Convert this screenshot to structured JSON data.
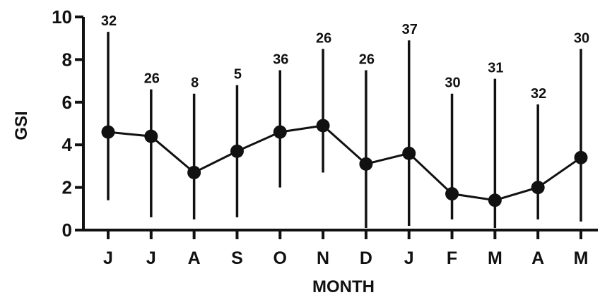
{
  "chart_data": {
    "type": "line",
    "title": "",
    "xlabel": "MONTH",
    "ylabel": "GSI",
    "ylim": [
      0,
      10
    ],
    "yticks": [
      "0",
      "2",
      "4",
      "6",
      "8",
      "10"
    ],
    "categories": [
      "J",
      "J",
      "A",
      "S",
      "O",
      "N",
      "D",
      "J",
      "F",
      "M",
      "A",
      "M"
    ],
    "series": [
      {
        "values": [
          4.6,
          4.4,
          2.7,
          3.7,
          4.6,
          4.9,
          3.1,
          3.6,
          1.7,
          1.4,
          2.0,
          3.4
        ],
        "error_low": [
          1.4,
          0.6,
          0.5,
          0.6,
          2.0,
          2.7,
          0.1,
          0.2,
          0.5,
          0.1,
          0.5,
          0.4
        ],
        "error_high": [
          9.3,
          6.6,
          6.4,
          6.8,
          7.5,
          8.5,
          7.5,
          8.9,
          6.4,
          7.1,
          5.9,
          8.5
        ],
        "n_labels": [
          "32",
          "26",
          "8",
          "5",
          "36",
          "26",
          "26",
          "37",
          "30",
          "31",
          "32",
          "30"
        ]
      }
    ],
    "grid": false,
    "legend": "none",
    "colors": {
      "ink": "#111111",
      "background": "#ffffff"
    }
  }
}
